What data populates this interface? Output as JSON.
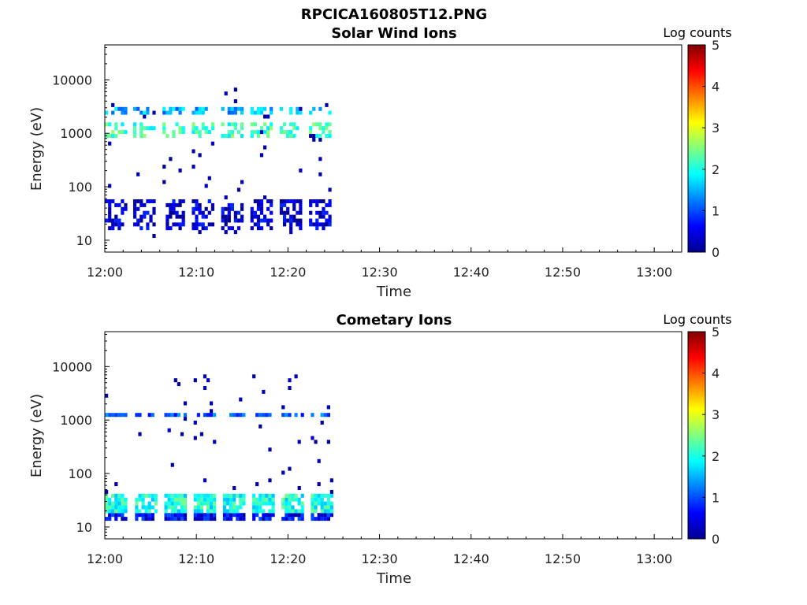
{
  "figure_title": "RPCICA160805T12.PNG",
  "chart_data": [
    {
      "type": "heatmap",
      "title": "Solar Wind Ions",
      "xlabel": "Time",
      "ylabel": "Energy (eV)",
      "x_ticks": [
        "12:00",
        "12:10",
        "12:20",
        "12:30",
        "12:40",
        "12:50",
        "13:00"
      ],
      "y_ticks": [
        "10",
        "100",
        "1000",
        "10000"
      ],
      "y_scale": "log",
      "ylim": [
        6,
        45000
      ],
      "xlim_minutes": [
        0,
        63
      ],
      "colorbar": {
        "label": "Log counts",
        "ticks": [
          "0",
          "1",
          "2",
          "3",
          "4",
          "5"
        ],
        "range": [
          0,
          5
        ],
        "colormap": "jet"
      },
      "sweep_period_minutes": 3.2,
      "sweep_starts_minutes": [
        0,
        3.1,
        6.3,
        9.5,
        12.7,
        15.9,
        19.1,
        22.3
      ],
      "sweep_width_minutes": 2.4,
      "bands": [
        {
          "energy_eV": [
            2200,
            3200
          ],
          "log_counts": 1.5
        },
        {
          "energy_eV": [
            800,
            1500
          ],
          "log_counts": 2.2
        },
        {
          "energy_eV": [
            15,
            60
          ],
          "log_counts": 0.4
        }
      ],
      "data_end_minutes": 25
    },
    {
      "type": "heatmap",
      "title": "Cometary Ions",
      "xlabel": "Time",
      "ylabel": "Energy (eV)",
      "x_ticks": [
        "12:00",
        "12:10",
        "12:20",
        "12:30",
        "12:40",
        "12:50",
        "13:00"
      ],
      "y_ticks": [
        "10",
        "100",
        "1000",
        "10000"
      ],
      "y_scale": "log",
      "ylim": [
        6,
        45000
      ],
      "xlim_minutes": [
        0,
        63
      ],
      "colorbar": {
        "label": "Log counts",
        "ticks": [
          "0",
          "1",
          "2",
          "3",
          "4",
          "5"
        ],
        "range": [
          0,
          5
        ],
        "colormap": "jet"
      },
      "sweep_period_minutes": 3.2,
      "sweep_starts_minutes": [
        0,
        3.3,
        6.5,
        9.7,
        12.9,
        16.1,
        19.3,
        22.5
      ],
      "sweep_width_minutes": 2.4,
      "bands": [
        {
          "energy_eV": [
            1100,
            1300
          ],
          "log_counts": 1.0
        },
        {
          "energy_eV": [
            18,
            45
          ],
          "log_counts": 2.0
        },
        {
          "energy_eV": [
            13,
            18
          ],
          "log_counts": 0.6
        }
      ],
      "data_end_minutes": 25
    }
  ]
}
